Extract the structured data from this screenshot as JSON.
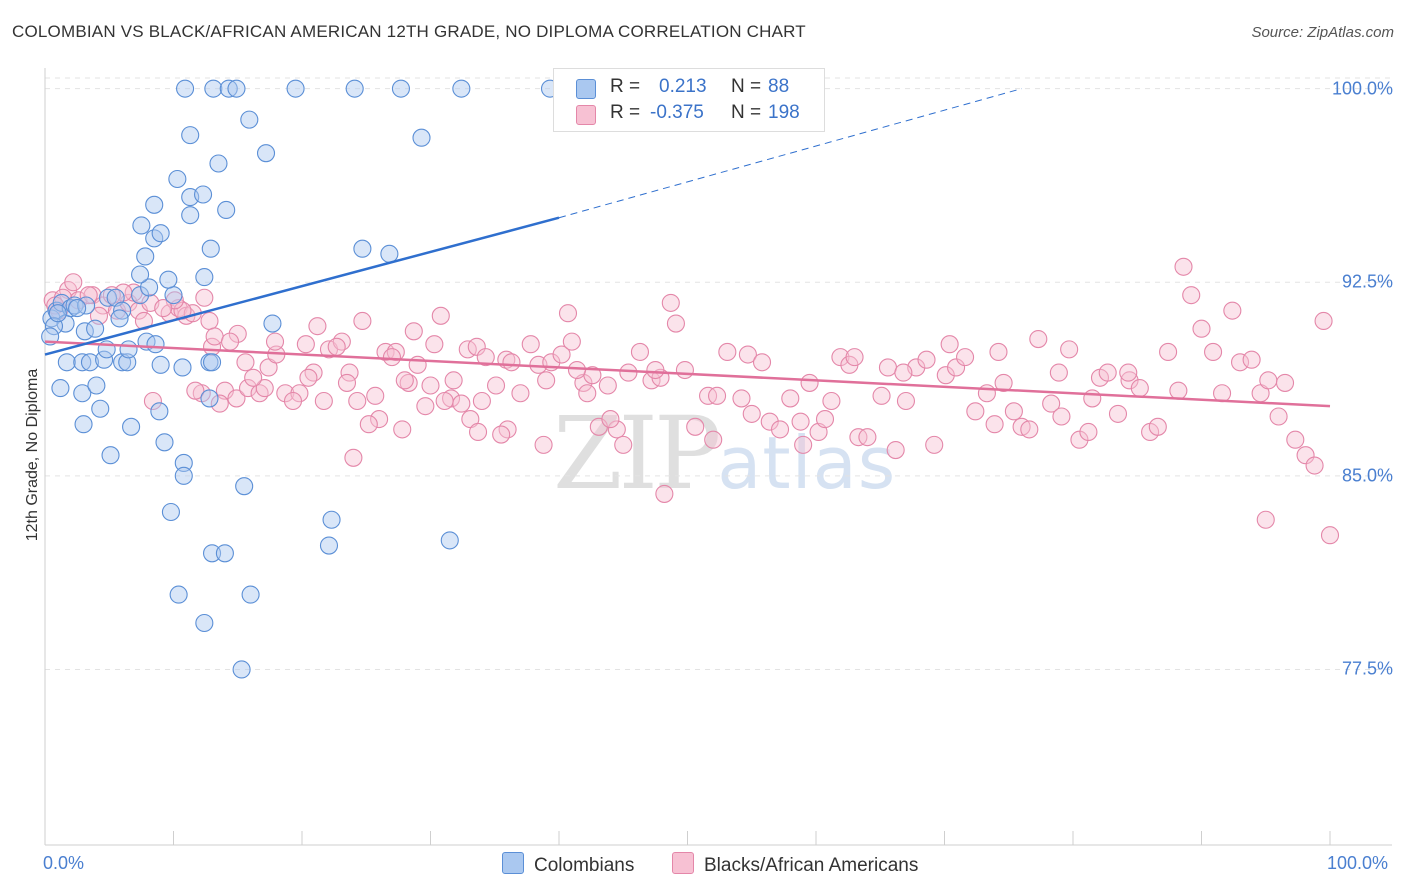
{
  "header": {
    "title": "COLOMBIAN VS BLACK/AFRICAN AMERICAN 12TH GRADE, NO DIPLOMA CORRELATION CHART",
    "source": "Source: ZipAtlas.com"
  },
  "legend": {
    "r_label": "R =",
    "n_label": "N =",
    "series": [
      {
        "name": "Colombians",
        "r": "0.213",
        "n": "88",
        "fill": "#aac8f0",
        "stroke": "#5b8fd6"
      },
      {
        "name": "Blacks/African Americans",
        "r": "-0.375",
        "n": "198",
        "fill": "#f7c1d3",
        "stroke": "#e487a9"
      }
    ]
  },
  "watermark": {
    "part1": "ZIP",
    "part2": "atlas"
  },
  "chart_data": {
    "type": "scatter",
    "title": "COLOMBIAN VS BLACK/AFRICAN AMERICAN 12TH GRADE, NO DIPLOMA CORRELATION CHART",
    "xlabel": "",
    "ylabel": "12th Grade, No Diploma",
    "xlim": [
      0,
      100
    ],
    "ylim": [
      70.7,
      100.8
    ],
    "x_tick_labels": [
      "0.0%",
      "100.0%"
    ],
    "y_ticks": [
      {
        "value": 77.5,
        "label": "77.5%"
      },
      {
        "value": 85.0,
        "label": "85.0%"
      },
      {
        "value": 92.5,
        "label": "92.5%"
      },
      {
        "value": 100.0,
        "label": "100.0%"
      }
    ],
    "grid": true,
    "series": [
      {
        "name": "Colombians",
        "color": "#5b8fd6",
        "trend": {
          "x": [
            0,
            40
          ],
          "y": [
            89.7,
            95.0
          ],
          "extended_to": [
            76,
            100.0
          ]
        },
        "points": [
          [
            0.5,
            91.1
          ],
          [
            0.9,
            91.4
          ],
          [
            1.3,
            91.7
          ],
          [
            1.6,
            90.9
          ],
          [
            0.7,
            90.8
          ],
          [
            2.0,
            91.5
          ],
          [
            2.3,
            91.6
          ],
          [
            1.0,
            91.3
          ],
          [
            1.2,
            88.4
          ],
          [
            1.7,
            89.4
          ],
          [
            2.9,
            89.4
          ],
          [
            3.5,
            89.4
          ],
          [
            4.6,
            89.5
          ],
          [
            6.0,
            89.4
          ],
          [
            6.4,
            89.4
          ],
          [
            9.0,
            89.3
          ],
          [
            10.7,
            89.2
          ],
          [
            12.8,
            89.4
          ],
          [
            3.1,
            90.6
          ],
          [
            3.9,
            90.7
          ],
          [
            6.5,
            89.9
          ],
          [
            4.8,
            89.9
          ],
          [
            7.9,
            90.2
          ],
          [
            8.6,
            90.1
          ],
          [
            2.9,
            88.2
          ],
          [
            4.0,
            88.5
          ],
          [
            4.3,
            87.6
          ],
          [
            6.7,
            86.9
          ],
          [
            8.9,
            87.5
          ],
          [
            12.8,
            88.0
          ],
          [
            3.0,
            87.0
          ],
          [
            5.1,
            85.8
          ],
          [
            9.3,
            86.3
          ],
          [
            10.8,
            85.5
          ],
          [
            10.8,
            85.0
          ],
          [
            15.5,
            84.6
          ],
          [
            9.8,
            83.6
          ],
          [
            22.3,
            83.3
          ],
          [
            22.1,
            82.3
          ],
          [
            31.5,
            82.5
          ],
          [
            13.0,
            82.0
          ],
          [
            14.0,
            82.0
          ],
          [
            10.4,
            80.4
          ],
          [
            16.0,
            80.4
          ],
          [
            12.4,
            79.3
          ],
          [
            15.3,
            77.5
          ],
          [
            4.9,
            91.9
          ],
          [
            5.5,
            91.9
          ],
          [
            7.4,
            92.0
          ],
          [
            8.1,
            92.3
          ],
          [
            10.0,
            92.0
          ],
          [
            7.4,
            92.8
          ],
          [
            9.6,
            92.6
          ],
          [
            12.4,
            92.7
          ],
          [
            6.0,
            91.4
          ],
          [
            7.8,
            93.5
          ],
          [
            8.5,
            94.2
          ],
          [
            9.0,
            94.4
          ],
          [
            12.9,
            93.8
          ],
          [
            11.3,
            95.1
          ],
          [
            14.1,
            95.3
          ],
          [
            7.5,
            94.7
          ],
          [
            8.5,
            95.5
          ],
          [
            11.3,
            95.8
          ],
          [
            12.3,
            95.9
          ],
          [
            10.3,
            96.5
          ],
          [
            13.5,
            97.1
          ],
          [
            17.2,
            97.5
          ],
          [
            11.3,
            98.2
          ],
          [
            15.9,
            98.8
          ],
          [
            29.3,
            98.1
          ],
          [
            10.9,
            100.0
          ],
          [
            13.1,
            100.0
          ],
          [
            14.3,
            100.0
          ],
          [
            14.9,
            100.0
          ],
          [
            19.5,
            100.0
          ],
          [
            24.1,
            100.0
          ],
          [
            27.7,
            100.0
          ],
          [
            32.4,
            100.0
          ],
          [
            39.3,
            100.0
          ],
          [
            24.7,
            93.8
          ],
          [
            26.8,
            93.6
          ],
          [
            17.7,
            90.9
          ],
          [
            5.8,
            91.1
          ],
          [
            3.2,
            91.6
          ],
          [
            0.4,
            90.4
          ],
          [
            2.5,
            91.5
          ],
          [
            13.0,
            89.4
          ]
        ]
      },
      {
        "name": "Blacks/African Americans",
        "color": "#e487a9",
        "trend": {
          "x": [
            0,
            100
          ],
          "y": [
            90.2,
            87.7
          ]
        },
        "points": [
          [
            0.6,
            91.8
          ],
          [
            1.1,
            91.4
          ],
          [
            1.8,
            92.2
          ],
          [
            2.6,
            91.8
          ],
          [
            3.7,
            92.0
          ],
          [
            4.5,
            91.6
          ],
          [
            5.6,
            91.4
          ],
          [
            6.5,
            91.7
          ],
          [
            7.3,
            91.4
          ],
          [
            8.2,
            91.7
          ],
          [
            9.7,
            91.3
          ],
          [
            10.4,
            91.5
          ],
          [
            11.0,
            91.2
          ],
          [
            12.8,
            91.0
          ],
          [
            13.0,
            90.0
          ],
          [
            13.2,
            90.4
          ],
          [
            14.0,
            88.3
          ],
          [
            14.9,
            88.0
          ],
          [
            15.8,
            88.4
          ],
          [
            16.7,
            88.2
          ],
          [
            17.4,
            89.2
          ],
          [
            18.7,
            88.2
          ],
          [
            19.8,
            88.2
          ],
          [
            20.3,
            90.1
          ],
          [
            21.2,
            90.8
          ],
          [
            22.1,
            89.9
          ],
          [
            23.1,
            90.2
          ],
          [
            23.7,
            89.0
          ],
          [
            24.3,
            87.9
          ],
          [
            24.7,
            91.0
          ],
          [
            25.7,
            88.1
          ],
          [
            26.5,
            89.8
          ],
          [
            27.3,
            89.8
          ],
          [
            28.3,
            88.6
          ],
          [
            28.7,
            90.6
          ],
          [
            29.6,
            87.7
          ],
          [
            30.3,
            90.1
          ],
          [
            30.8,
            91.2
          ],
          [
            31.6,
            88.0
          ],
          [
            32.4,
            87.8
          ],
          [
            32.9,
            89.9
          ],
          [
            33.6,
            90.0
          ],
          [
            34.3,
            89.6
          ],
          [
            35.1,
            88.5
          ],
          [
            35.9,
            89.5
          ],
          [
            36.3,
            89.4
          ],
          [
            37.8,
            90.1
          ],
          [
            38.4,
            89.3
          ],
          [
            39.4,
            89.4
          ],
          [
            40.2,
            89.7
          ],
          [
            41.0,
            90.2
          ],
          [
            41.9,
            88.6
          ],
          [
            42.2,
            88.2
          ],
          [
            43.1,
            86.9
          ],
          [
            43.8,
            88.5
          ],
          [
            44.5,
            86.8
          ],
          [
            45.4,
            89.0
          ],
          [
            46.3,
            89.8
          ],
          [
            47.2,
            88.7
          ],
          [
            47.9,
            88.8
          ],
          [
            48.7,
            91.7
          ],
          [
            49.1,
            90.9
          ],
          [
            50.6,
            86.9
          ],
          [
            51.6,
            88.1
          ],
          [
            52.3,
            88.1
          ],
          [
            53.1,
            89.8
          ],
          [
            54.2,
            88.0
          ],
          [
            54.7,
            89.7
          ],
          [
            55.8,
            89.4
          ],
          [
            56.4,
            87.1
          ],
          [
            57.2,
            86.8
          ],
          [
            58.0,
            88.0
          ],
          [
            58.8,
            87.1
          ],
          [
            59.5,
            88.6
          ],
          [
            60.2,
            86.7
          ],
          [
            60.7,
            87.2
          ],
          [
            61.9,
            89.6
          ],
          [
            62.6,
            89.3
          ],
          [
            63.3,
            86.5
          ],
          [
            64.0,
            86.5
          ],
          [
            65.1,
            88.1
          ],
          [
            65.6,
            89.2
          ],
          [
            66.2,
            86.0
          ],
          [
            67.0,
            87.9
          ],
          [
            67.8,
            89.2
          ],
          [
            68.6,
            89.5
          ],
          [
            69.2,
            86.2
          ],
          [
            70.1,
            88.9
          ],
          [
            70.9,
            89.2
          ],
          [
            71.6,
            89.6
          ],
          [
            72.4,
            87.5
          ],
          [
            73.3,
            88.2
          ],
          [
            73.9,
            87.0
          ],
          [
            74.6,
            88.6
          ],
          [
            75.4,
            87.5
          ],
          [
            76.0,
            86.9
          ],
          [
            76.6,
            86.8
          ],
          [
            77.3,
            90.3
          ],
          [
            78.3,
            87.8
          ],
          [
            78.9,
            89.0
          ],
          [
            79.7,
            89.9
          ],
          [
            80.5,
            86.4
          ],
          [
            81.2,
            86.7
          ],
          [
            82.1,
            88.8
          ],
          [
            82.7,
            89.0
          ],
          [
            83.5,
            87.4
          ],
          [
            84.4,
            88.7
          ],
          [
            85.2,
            88.4
          ],
          [
            86.0,
            86.7
          ],
          [
            86.6,
            86.9
          ],
          [
            87.4,
            89.8
          ],
          [
            88.2,
            88.3
          ],
          [
            89.2,
            92.0
          ],
          [
            90.0,
            90.7
          ],
          [
            90.9,
            89.8
          ],
          [
            91.6,
            88.2
          ],
          [
            92.4,
            91.4
          ],
          [
            93.0,
            89.4
          ],
          [
            93.9,
            89.5
          ],
          [
            94.6,
            88.2
          ],
          [
            95.2,
            88.7
          ],
          [
            96.0,
            87.3
          ],
          [
            96.5,
            88.6
          ],
          [
            97.3,
            86.4
          ],
          [
            98.1,
            85.8
          ],
          [
            98.8,
            85.4
          ],
          [
            99.5,
            91.0
          ],
          [
            100.0,
            82.7
          ],
          [
            95.0,
            83.3
          ],
          [
            88.6,
            93.1
          ],
          [
            84.3,
            89.0
          ],
          [
            81.5,
            88.0
          ],
          [
            79.1,
            87.3
          ],
          [
            74.2,
            89.8
          ],
          [
            70.4,
            90.1
          ],
          [
            66.8,
            89.0
          ],
          [
            63.0,
            89.6
          ],
          [
            59.0,
            86.2
          ],
          [
            55.0,
            87.4
          ],
          [
            52.0,
            86.4
          ],
          [
            49.8,
            89.1
          ],
          [
            47.5,
            89.1
          ],
          [
            45.0,
            86.2
          ],
          [
            44.0,
            87.2
          ],
          [
            42.6,
            88.9
          ],
          [
            41.4,
            89.1
          ],
          [
            40.7,
            91.3
          ],
          [
            39.0,
            88.7
          ],
          [
            37.0,
            88.2
          ],
          [
            36.0,
            86.8
          ],
          [
            35.5,
            86.6
          ],
          [
            34.0,
            87.9
          ],
          [
            33.1,
            87.2
          ],
          [
            31.1,
            87.9
          ],
          [
            30.0,
            88.5
          ],
          [
            29.0,
            89.3
          ],
          [
            28.0,
            88.7
          ],
          [
            27.0,
            89.6
          ],
          [
            26.0,
            87.2
          ],
          [
            25.2,
            87.0
          ],
          [
            24.0,
            85.7
          ],
          [
            23.5,
            88.6
          ],
          [
            22.7,
            90.0
          ],
          [
            21.7,
            87.9
          ],
          [
            20.9,
            89.0
          ],
          [
            19.3,
            87.9
          ],
          [
            18.0,
            89.7
          ],
          [
            17.1,
            88.4
          ],
          [
            16.2,
            88.8
          ],
          [
            15.6,
            89.4
          ],
          [
            15.0,
            90.5
          ],
          [
            14.4,
            90.2
          ],
          [
            13.6,
            87.8
          ],
          [
            12.2,
            88.2
          ],
          [
            11.7,
            88.3
          ],
          [
            11.5,
            91.3
          ],
          [
            10.7,
            91.4
          ],
          [
            10.1,
            91.8
          ],
          [
            9.2,
            91.5
          ],
          [
            8.4,
            87.9
          ],
          [
            7.7,
            91.0
          ],
          [
            6.9,
            92.1
          ],
          [
            6.1,
            92.1
          ],
          [
            5.2,
            92.0
          ],
          [
            4.2,
            91.2
          ],
          [
            3.4,
            92.0
          ],
          [
            2.2,
            92.5
          ],
          [
            1.4,
            91.9
          ],
          [
            0.8,
            91.6
          ],
          [
            12.4,
            91.9
          ],
          [
            17.9,
            90.2
          ],
          [
            20.5,
            88.8
          ],
          [
            27.8,
            86.8
          ],
          [
            33.7,
            86.7
          ],
          [
            31.8,
            88.7
          ],
          [
            38.8,
            86.2
          ],
          [
            48.2,
            84.3
          ],
          [
            61.2,
            87.9
          ]
        ]
      }
    ]
  }
}
